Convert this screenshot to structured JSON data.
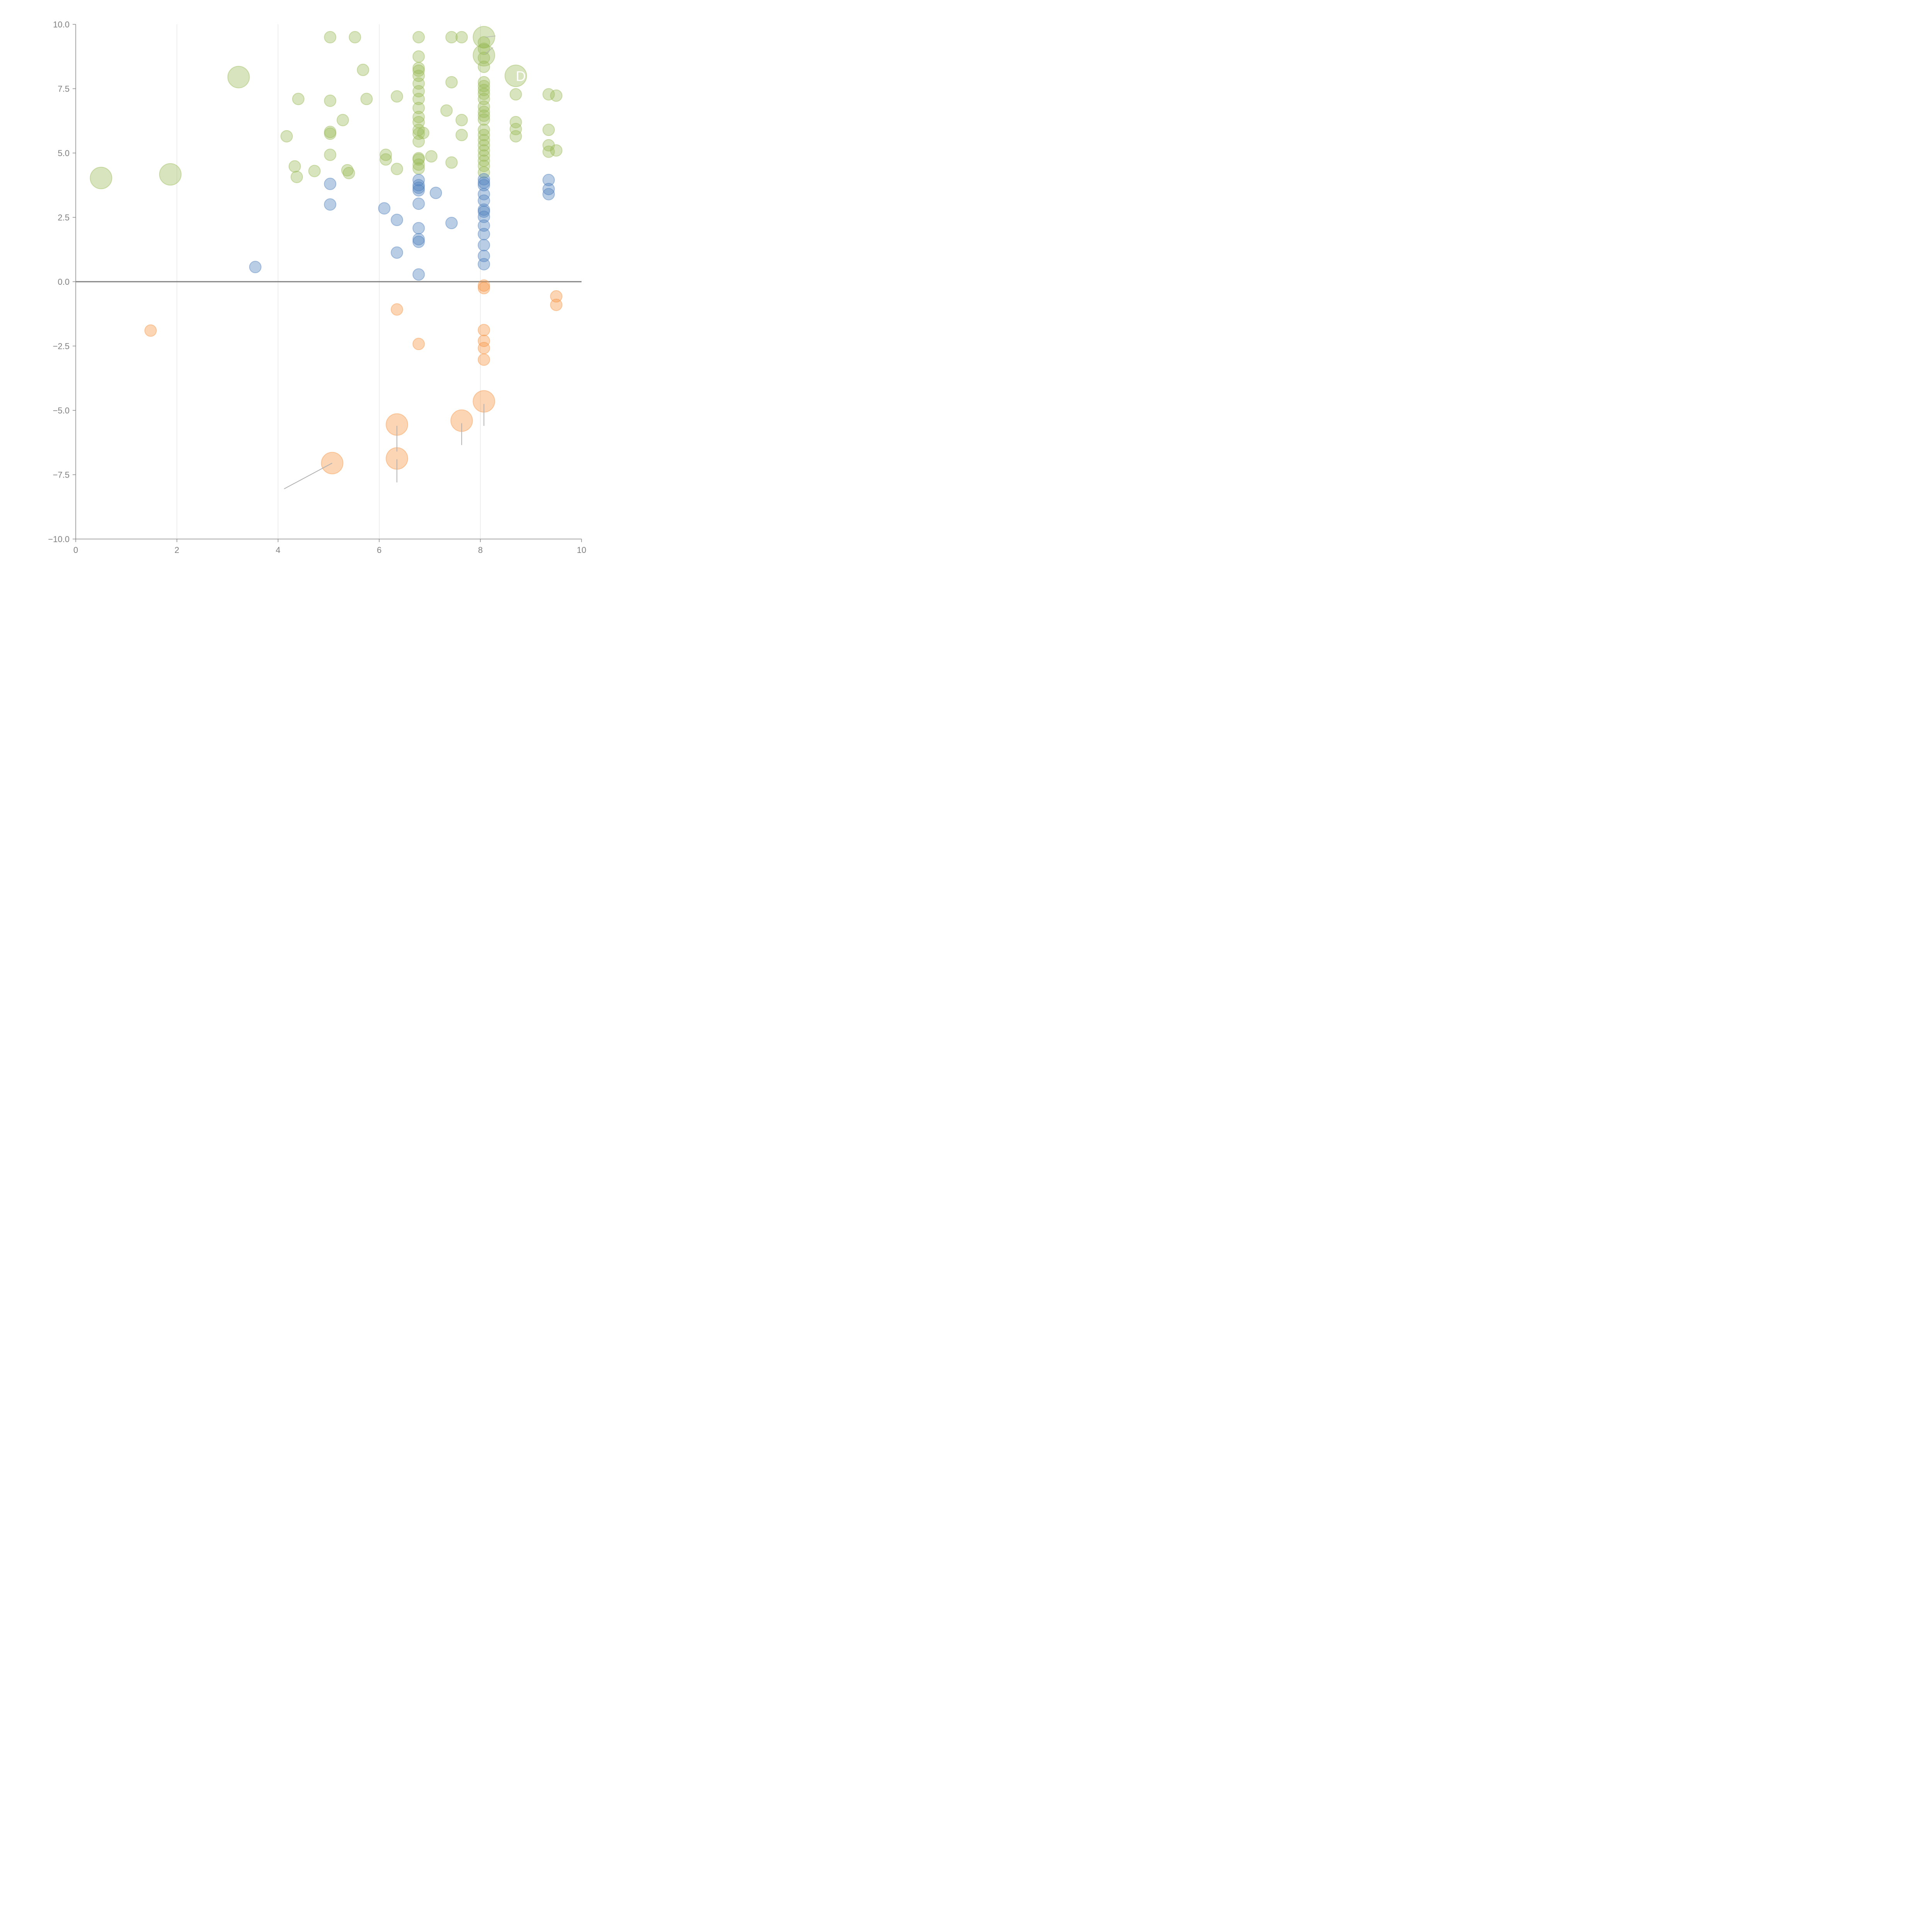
{
  "chart_data": {
    "type": "scatter",
    "title": "",
    "xlabel": "",
    "ylabel": "",
    "xlim": [
      0,
      10
    ],
    "ylim": [
      -10,
      10
    ],
    "x_ticks": [
      "0",
      "2",
      "4",
      "6",
      "8",
      "10"
    ],
    "y_ticks": [
      "10.0",
      "7.5",
      "5.0",
      "2.5",
      "0.0",
      "−2.5",
      "−5.0",
      "−7.5",
      "−10.0"
    ],
    "grid": "vertical",
    "legend": "none",
    "series": [
      {
        "name": "green",
        "color": "#9bbb59",
        "points": [
          [
            0.5,
            4.03,
            2
          ],
          [
            1.87,
            4.17,
            2
          ],
          [
            3.22,
            7.95,
            2
          ],
          [
            4.17,
            5.65,
            1
          ],
          [
            4.33,
            4.48,
            1
          ],
          [
            4.37,
            4.07,
            1
          ],
          [
            4.4,
            7.1,
            1
          ],
          [
            4.72,
            4.3,
            1
          ],
          [
            5.03,
            9.5,
            1
          ],
          [
            5.03,
            7.03,
            1
          ],
          [
            5.03,
            5.82,
            1
          ],
          [
            5.03,
            5.75,
            1
          ],
          [
            5.03,
            4.93,
            1
          ],
          [
            5.28,
            6.28,
            1
          ],
          [
            5.37,
            4.33,
            1
          ],
          [
            5.4,
            4.22,
            1
          ],
          [
            5.52,
            9.5,
            1
          ],
          [
            5.68,
            8.23,
            1
          ],
          [
            5.75,
            7.1,
            1
          ],
          [
            6.13,
            4.93,
            1
          ],
          [
            6.13,
            4.75,
            1
          ],
          [
            6.35,
            7.2,
            1
          ],
          [
            6.35,
            4.38,
            1
          ],
          [
            6.78,
            9.5,
            1
          ],
          [
            6.78,
            8.75,
            1
          ],
          [
            6.78,
            8.3,
            1
          ],
          [
            6.78,
            8.2,
            1
          ],
          [
            6.78,
            8.0,
            1
          ],
          [
            6.78,
            7.7,
            1
          ],
          [
            6.78,
            7.4,
            1
          ],
          [
            6.78,
            7.1,
            1
          ],
          [
            6.78,
            6.75,
            1
          ],
          [
            6.78,
            6.4,
            1
          ],
          [
            6.78,
            6.2,
            1
          ],
          [
            6.78,
            5.9,
            1
          ],
          [
            6.78,
            5.75,
            1
          ],
          [
            6.78,
            5.45,
            1
          ],
          [
            6.78,
            4.8,
            1
          ],
          [
            6.78,
            4.75,
            1
          ],
          [
            6.78,
            4.55,
            1
          ],
          [
            6.78,
            4.4,
            1
          ],
          [
            6.87,
            5.78,
            1
          ],
          [
            7.03,
            4.87,
            1
          ],
          [
            7.33,
            6.65,
            1
          ],
          [
            7.43,
            9.5,
            1
          ],
          [
            7.43,
            7.75,
            1
          ],
          [
            7.43,
            4.63,
            1
          ],
          [
            7.63,
            9.5,
            1
          ],
          [
            7.63,
            6.28,
            1
          ],
          [
            7.63,
            5.7,
            1
          ],
          [
            8.07,
            9.5,
            3
          ],
          [
            8.07,
            8.8,
            3
          ],
          [
            8.07,
            9.3,
            1
          ],
          [
            8.07,
            9.05,
            1
          ],
          [
            8.07,
            8.7,
            1
          ],
          [
            8.07,
            8.35,
            1
          ],
          [
            8.07,
            7.75,
            1
          ],
          [
            8.07,
            7.6,
            1
          ],
          [
            8.07,
            7.45,
            1
          ],
          [
            8.07,
            7.3,
            1
          ],
          [
            8.07,
            7.1,
            1
          ],
          [
            8.07,
            6.8,
            1
          ],
          [
            8.07,
            6.6,
            1
          ],
          [
            8.07,
            6.45,
            1
          ],
          [
            8.07,
            6.3,
            1
          ],
          [
            8.07,
            5.9,
            1
          ],
          [
            8.07,
            5.7,
            1
          ],
          [
            8.07,
            5.5,
            1
          ],
          [
            8.07,
            5.3,
            1
          ],
          [
            8.07,
            5.1,
            1
          ],
          [
            8.07,
            4.9,
            1
          ],
          [
            8.07,
            4.7,
            1
          ],
          [
            8.07,
            4.5,
            1
          ],
          [
            8.07,
            4.25,
            1
          ],
          [
            8.7,
            8.0,
            2
          ],
          [
            8.7,
            7.28,
            1
          ],
          [
            8.7,
            6.2,
            1
          ],
          [
            8.7,
            5.93,
            1
          ],
          [
            8.7,
            5.65,
            1
          ],
          [
            9.35,
            7.28,
            1
          ],
          [
            9.35,
            5.9,
            1
          ],
          [
            9.35,
            5.3,
            1
          ],
          [
            9.35,
            5.05,
            1
          ],
          [
            9.5,
            7.23,
            1
          ],
          [
            9.5,
            5.1,
            1
          ]
        ]
      },
      {
        "name": "blue",
        "color": "#4f81bd",
        "points": [
          [
            3.55,
            0.57,
            1
          ],
          [
            5.03,
            3.8,
            1
          ],
          [
            5.03,
            3.0,
            1
          ],
          [
            6.1,
            2.85,
            1
          ],
          [
            6.35,
            2.4,
            1
          ],
          [
            6.35,
            1.13,
            1
          ],
          [
            6.78,
            3.95,
            1
          ],
          [
            6.78,
            3.75,
            1
          ],
          [
            6.78,
            3.65,
            1
          ],
          [
            6.78,
            3.55,
            1
          ],
          [
            6.78,
            3.03,
            1
          ],
          [
            6.78,
            2.08,
            1
          ],
          [
            6.78,
            1.65,
            1
          ],
          [
            6.78,
            1.55,
            1
          ],
          [
            6.78,
            0.28,
            1
          ],
          [
            7.12,
            3.45,
            1
          ],
          [
            7.43,
            2.28,
            1
          ],
          [
            8.07,
            3.98,
            1
          ],
          [
            8.07,
            3.85,
            1
          ],
          [
            8.07,
            3.75,
            1
          ],
          [
            8.07,
            3.4,
            1
          ],
          [
            8.07,
            3.15,
            1
          ],
          [
            8.07,
            2.8,
            1
          ],
          [
            8.07,
            2.72,
            1
          ],
          [
            8.07,
            2.52,
            1
          ],
          [
            8.07,
            2.18,
            1
          ],
          [
            8.07,
            1.85,
            1
          ],
          [
            8.07,
            1.42,
            1
          ],
          [
            8.07,
            1.0,
            1
          ],
          [
            8.07,
            0.68,
            1
          ],
          [
            9.35,
            3.95,
            1
          ],
          [
            9.35,
            3.6,
            1
          ],
          [
            9.35,
            3.4,
            1
          ]
        ]
      },
      {
        "name": "orange",
        "color": "#f79646",
        "points": [
          [
            1.48,
            -1.9,
            1
          ],
          [
            6.35,
            -1.08,
            1
          ],
          [
            6.78,
            -2.42,
            1
          ],
          [
            8.07,
            -0.15,
            1
          ],
          [
            8.07,
            -0.25,
            1
          ],
          [
            8.07,
            -1.88,
            1
          ],
          [
            8.07,
            -2.3,
            1
          ],
          [
            8.07,
            -2.58,
            1
          ],
          [
            8.07,
            -3.03,
            1
          ],
          [
            9.5,
            -0.57,
            1
          ],
          [
            9.5,
            -0.9,
            1
          ],
          [
            5.07,
            -7.05,
            2
          ],
          [
            6.35,
            -5.55,
            2
          ],
          [
            6.35,
            -6.87,
            2
          ],
          [
            7.63,
            -5.4,
            2
          ],
          [
            8.07,
            -4.65,
            2
          ]
        ]
      }
    ],
    "annotations": [
      {
        "text": "D",
        "x": 8.7,
        "y": 7.8
      },
      {
        "text": "",
        "leader_from": [
          5.07,
          -7.05
        ],
        "leader_to": [
          4.12,
          -8.05
        ]
      },
      {
        "text": "",
        "leader_from": [
          6.35,
          -5.6
        ],
        "leader_to": [
          6.35,
          -6.6
        ]
      },
      {
        "text": "",
        "leader_from": [
          6.35,
          -6.9
        ],
        "leader_to": [
          6.35,
          -7.8
        ]
      },
      {
        "text": "",
        "leader_from": [
          7.63,
          -5.5
        ],
        "leader_to": [
          7.63,
          -6.35
        ]
      },
      {
        "text": "",
        "leader_from": [
          8.07,
          -4.75
        ],
        "leader_to": [
          8.07,
          -5.6
        ]
      },
      {
        "text": "",
        "leader_from": [
          8.1,
          9.5
        ],
        "leader_to": [
          8.3,
          9.55
        ]
      },
      {
        "text": "",
        "leader_from": [
          8.1,
          8.85
        ],
        "leader_to": [
          8.25,
          9.1
        ]
      }
    ]
  }
}
